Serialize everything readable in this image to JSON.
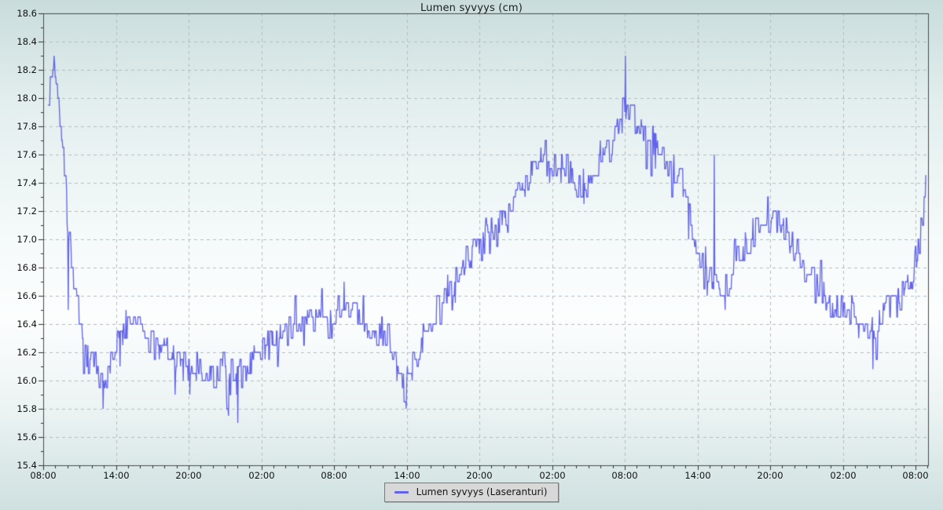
{
  "title": "Lumen syvyys (cm)",
  "legend": {
    "label": "Lumen syvyys (Laseranturi)"
  },
  "colors": {
    "line": "#6163e8",
    "grid": "#b4bcbc",
    "axis": "#4a4a4a",
    "tick": "#333333",
    "legend_bg": "#d8d8d8",
    "legend_border": "#7a7a7a"
  },
  "chart_data": {
    "type": "line",
    "title": "Lumen syvyys (cm)",
    "series_name": "Lumen syvyys (Laseranturi)",
    "xlabel": "",
    "ylabel": "",
    "ylim": [
      15.4,
      18.6
    ],
    "y_major_step": 0.2,
    "y_minor_step": 0.1,
    "y_tick_labels": [
      "18.6",
      "18.4",
      "18.2",
      "18.0",
      "17.8",
      "17.6",
      "17.4",
      "17.2",
      "17.0",
      "16.8",
      "16.6",
      "16.4",
      "16.2",
      "16.0",
      "15.8",
      "15.6",
      "15.4"
    ],
    "x_tick_labels": [
      "08:00",
      "14:00",
      "20:00",
      "02:00",
      "08:00",
      "14:00",
      "20:00",
      "02:00",
      "08:00",
      "14:00",
      "20:00",
      "02:00",
      "08:00"
    ],
    "x_major_interval_hours": 6,
    "x_minor_interval_hours": 1,
    "x_span_hours": 72,
    "grid": "dashed",
    "legend_position": "bottom-center",
    "data_start_hour": 0.4,
    "data_end_hour": 72.9,
    "sample_step_hours": 0.045,
    "noise_amplitude": 0.1,
    "quantize_cm": 0.05,
    "anchors": [
      [
        0.4,
        18.0
      ],
      [
        0.55,
        18.1
      ],
      [
        0.75,
        18.2
      ],
      [
        0.95,
        18.25
      ],
      [
        1.1,
        18.1
      ],
      [
        1.3,
        18.0
      ],
      [
        1.5,
        17.8
      ],
      [
        1.75,
        17.45
      ],
      [
        2.0,
        17.15
      ],
      [
        2.3,
        16.9
      ],
      [
        2.6,
        16.65
      ],
      [
        3.0,
        16.35
      ],
      [
        3.4,
        16.2
      ],
      [
        3.8,
        16.15
      ],
      [
        4.2,
        16.2
      ],
      [
        4.6,
        16.0
      ],
      [
        4.95,
        15.9
      ],
      [
        5.3,
        16.05
      ],
      [
        5.7,
        16.2
      ],
      [
        6.1,
        16.3
      ],
      [
        6.6,
        16.3
      ],
      [
        7.1,
        16.4
      ],
      [
        7.6,
        16.45
      ],
      [
        8.1,
        16.4
      ],
      [
        8.7,
        16.3
      ],
      [
        9.3,
        16.2
      ],
      [
        10.0,
        16.25
      ],
      [
        10.7,
        16.15
      ],
      [
        11.3,
        16.1
      ],
      [
        12.0,
        16.1
      ],
      [
        12.8,
        16.1
      ],
      [
        13.6,
        16.05
      ],
      [
        14.4,
        16.05
      ],
      [
        15.2,
        16.0
      ],
      [
        16.0,
        16.0
      ],
      [
        16.8,
        16.1
      ],
      [
        17.6,
        16.2
      ],
      [
        18.4,
        16.25
      ],
      [
        19.2,
        16.3
      ],
      [
        20.0,
        16.35
      ],
      [
        21.0,
        16.4
      ],
      [
        22.0,
        16.4
      ],
      [
        23.0,
        16.45
      ],
      [
        24.0,
        16.5
      ],
      [
        24.8,
        16.5
      ],
      [
        25.6,
        16.45
      ],
      [
        26.4,
        16.4
      ],
      [
        27.2,
        16.35
      ],
      [
        28.0,
        16.3
      ],
      [
        28.8,
        16.2
      ],
      [
        29.4,
        16.05
      ],
      [
        29.8,
        15.92
      ],
      [
        30.2,
        15.98
      ],
      [
        30.7,
        16.15
      ],
      [
        31.3,
        16.3
      ],
      [
        32.0,
        16.45
      ],
      [
        33.0,
        16.6
      ],
      [
        34.0,
        16.7
      ],
      [
        35.0,
        16.85
      ],
      [
        36.0,
        16.95
      ],
      [
        37.0,
        17.05
      ],
      [
        38.0,
        17.15
      ],
      [
        39.0,
        17.3
      ],
      [
        40.0,
        17.45
      ],
      [
        41.0,
        17.55
      ],
      [
        42.0,
        17.5
      ],
      [
        43.0,
        17.5
      ],
      [
        44.0,
        17.4
      ],
      [
        45.0,
        17.4
      ],
      [
        46.0,
        17.55
      ],
      [
        47.0,
        17.7
      ],
      [
        47.6,
        17.85
      ],
      [
        48.0,
        17.95
      ],
      [
        48.5,
        17.9
      ],
      [
        49.0,
        17.8
      ],
      [
        50.0,
        17.75
      ],
      [
        51.0,
        17.65
      ],
      [
        52.0,
        17.5
      ],
      [
        53.0,
        17.35
      ],
      [
        53.6,
        17.1
      ],
      [
        54.0,
        16.9
      ],
      [
        54.6,
        16.75
      ],
      [
        55.2,
        16.68
      ],
      [
        56.0,
        16.62
      ],
      [
        56.6,
        16.7
      ],
      [
        57.2,
        16.85
      ],
      [
        58.0,
        16.95
      ],
      [
        59.0,
        17.1
      ],
      [
        60.0,
        17.1
      ],
      [
        60.6,
        17.15
      ],
      [
        61.2,
        17.1
      ],
      [
        62.0,
        16.95
      ],
      [
        62.8,
        16.8
      ],
      [
        63.6,
        16.75
      ],
      [
        64.4,
        16.6
      ],
      [
        65.2,
        16.52
      ],
      [
        66.0,
        16.5
      ],
      [
        66.8,
        16.5
      ],
      [
        67.6,
        16.45
      ],
      [
        68.3,
        16.38
      ],
      [
        69.0,
        16.45
      ],
      [
        69.7,
        16.5
      ],
      [
        70.4,
        16.55
      ],
      [
        71.1,
        16.62
      ],
      [
        71.8,
        16.75
      ],
      [
        72.3,
        17.0
      ],
      [
        72.65,
        17.2
      ],
      [
        72.9,
        17.4
      ]
    ],
    "spikes": [
      [
        0.9,
        18.3
      ],
      [
        2.05,
        16.5
      ],
      [
        4.95,
        15.8
      ],
      [
        12.1,
        15.9
      ],
      [
        15.25,
        15.8
      ],
      [
        16.05,
        15.7
      ],
      [
        24.85,
        16.7
      ],
      [
        29.95,
        15.8
      ],
      [
        48.05,
        18.3
      ],
      [
        55.4,
        17.6
      ],
      [
        68.5,
        16.08
      ]
    ]
  }
}
